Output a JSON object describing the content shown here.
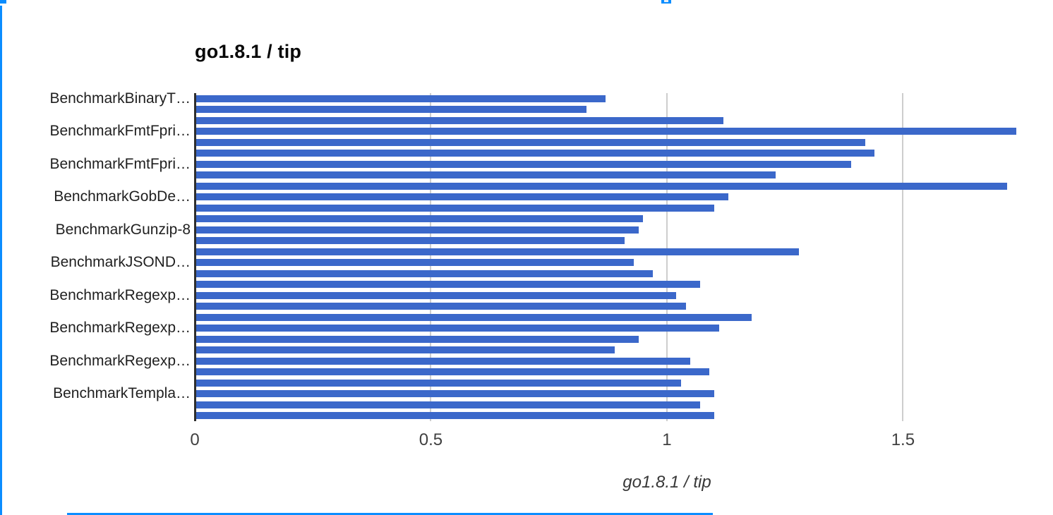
{
  "artifacts": {
    "accent_blue": "#0b8dff"
  },
  "chart_data": {
    "type": "bar",
    "orientation": "horizontal",
    "title": "go1.8.1 / tip",
    "xlabel": "go1.8.1 / tip",
    "ylabel": "",
    "legend": "none",
    "grid": true,
    "bar_color": "#3b68ca",
    "gridline_color": "#cdcdcd",
    "baseline_color": "#2e2e2e",
    "xlim": [
      0,
      1.77
    ],
    "x_ticks": [
      0,
      0.5,
      1,
      1.5
    ],
    "x_tick_labels": [
      "0",
      "0.5",
      "1",
      "1.5"
    ],
    "label_every": 3,
    "bars": [
      {
        "label": "BenchmarkBinaryT…",
        "value": 0.87
      },
      {
        "label": "",
        "value": 0.83
      },
      {
        "label": "",
        "value": 1.12
      },
      {
        "label": "BenchmarkFmtFpri…",
        "value": 1.74
      },
      {
        "label": "",
        "value": 1.42
      },
      {
        "label": "",
        "value": 1.44
      },
      {
        "label": "BenchmarkFmtFpri…",
        "value": 1.39
      },
      {
        "label": "",
        "value": 1.23
      },
      {
        "label": "",
        "value": 1.72
      },
      {
        "label": "BenchmarkGobDe…",
        "value": 1.13
      },
      {
        "label": "",
        "value": 1.1
      },
      {
        "label": "",
        "value": 0.95
      },
      {
        "label": "BenchmarkGunzip-8",
        "value": 0.94
      },
      {
        "label": "",
        "value": 0.91
      },
      {
        "label": "",
        "value": 1.28
      },
      {
        "label": "BenchmarkJSOND…",
        "value": 0.93
      },
      {
        "label": "",
        "value": 0.97
      },
      {
        "label": "",
        "value": 1.07
      },
      {
        "label": "BenchmarkRegexp…",
        "value": 1.02
      },
      {
        "label": "",
        "value": 1.04
      },
      {
        "label": "",
        "value": 1.18
      },
      {
        "label": "BenchmarkRegexp…",
        "value": 1.11
      },
      {
        "label": "",
        "value": 0.94
      },
      {
        "label": "",
        "value": 0.89
      },
      {
        "label": "BenchmarkRegexp…",
        "value": 1.05
      },
      {
        "label": "",
        "value": 1.09
      },
      {
        "label": "",
        "value": 1.03
      },
      {
        "label": "BenchmarkTempla…",
        "value": 1.1
      },
      {
        "label": "",
        "value": 1.07
      },
      {
        "label": "",
        "value": 1.1
      }
    ]
  }
}
